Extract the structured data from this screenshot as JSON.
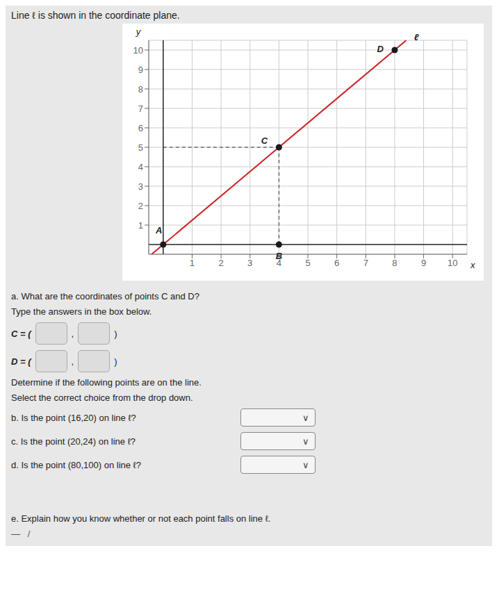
{
  "chart_data": {
    "type": "scatter",
    "title": "Line ℓ is shown in the coordinate plane.",
    "x_label": "x",
    "y_label": "y",
    "xlim": [
      -0.5,
      10.5
    ],
    "ylim": [
      -0.5,
      10.5
    ],
    "xticks": [
      1,
      2,
      3,
      4,
      5,
      6,
      7,
      8,
      9,
      10
    ],
    "yticks": [
      1,
      2,
      3,
      4,
      5,
      6,
      7,
      8,
      9,
      10
    ],
    "grid": true,
    "series": [
      {
        "type": "line",
        "color": "#cc2222",
        "x": [
          -0.4,
          8.4
        ],
        "values": [
          -0.5,
          10.5
        ]
      },
      {
        "type": "line",
        "line_style": "dashed",
        "color": "#333333",
        "x": [
          4,
          4
        ],
        "values": [
          0,
          5
        ]
      },
      {
        "type": "line",
        "line_style": "dashed",
        "color": "#333333",
        "x": [
          0,
          4
        ],
        "values": [
          5,
          5
        ]
      },
      {
        "type": "scatter",
        "color": "#1a1a1a",
        "x": [
          0,
          4,
          4,
          8
        ],
        "values": [
          0,
          0,
          5,
          10
        ]
      }
    ],
    "annotations": [
      {
        "text": "A",
        "x": -0.15,
        "y": 0.75
      },
      {
        "text": "B",
        "x": 4.0,
        "y": -0.6
      },
      {
        "text": "C",
        "x": 3.5,
        "y": 5.35
      },
      {
        "text": "D",
        "x": 7.5,
        "y": 10.05
      },
      {
        "text": "ℓ",
        "x": 8.75,
        "y": 10.65
      }
    ],
    "form_rows": [
      [
        "a. What are the coordinates of points C and D?"
      ],
      [
        "Type the answers in the box below."
      ],
      [
        "C = (",
        ",",
        ")"
      ],
      [
        "D = (",
        ",",
        ")"
      ],
      [
        "Determine if the following points are on the line."
      ],
      [
        "Select the correct choice from the drop down."
      ],
      [
        "b. Is the point (16,20) on line ℓ?",
        "∨"
      ],
      [
        "c. Is the point (20,24) on line ℓ?",
        "∨"
      ],
      [
        "d. Is the point (80,100) on line ℓ?",
        "∨"
      ],
      [
        "e. Explain how you know whether or not each point falls on line ℓ."
      ],
      [
        "—   /"
      ]
    ]
  }
}
